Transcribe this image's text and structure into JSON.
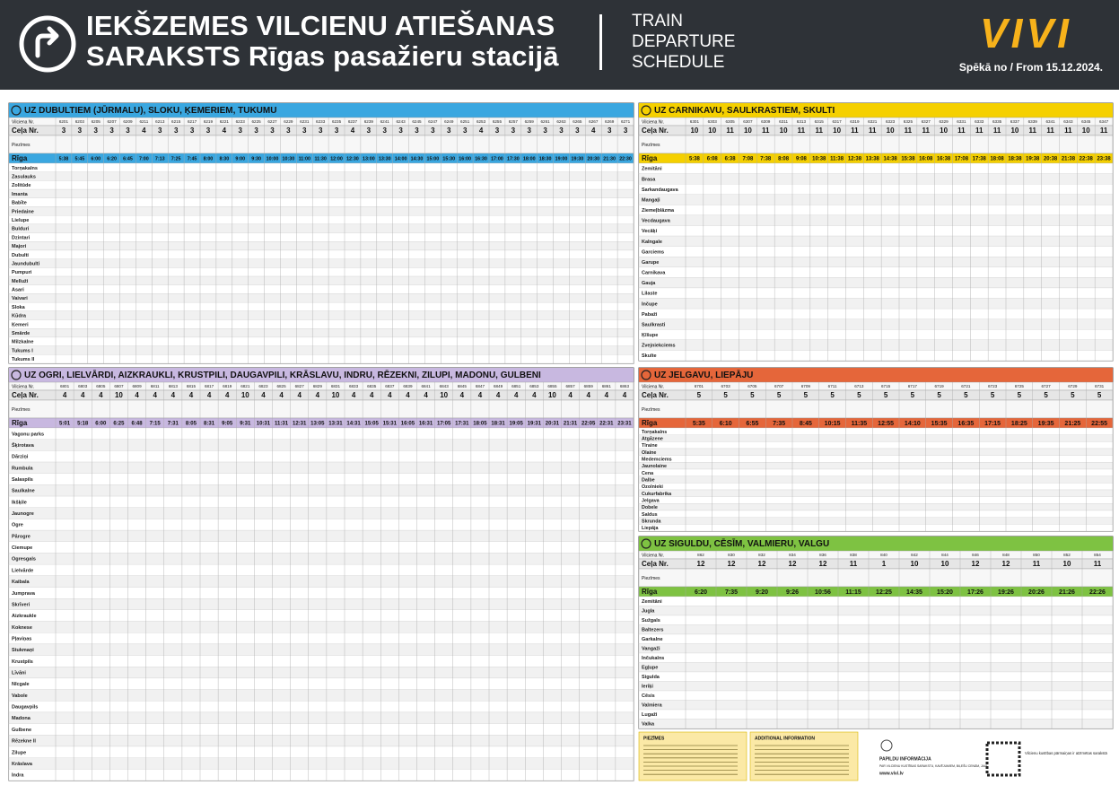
{
  "header": {
    "title_lv": [
      "IEKŠZEMES VILCIENU ATIEŠANAS",
      "SARAKSTS Rīgas pasažieru stacijā"
    ],
    "title_en": [
      "TRAIN",
      "DEPARTURE",
      "SCHEDULE"
    ],
    "logo": "VIVI",
    "valid": "Spēkā no / From 15.12.2024."
  },
  "row_labels": [
    "Vilciena Nr.",
    "Ceļa Nr.",
    "Piezīmes",
    "Rīga"
  ],
  "sections": [
    {
      "title": "UZ DUBULTIEM (JŪRMALU), SLOKU, ĶEMERIEM, TUKUMU",
      "color": "#3aa7e0",
      "trains": [
        "6201",
        "6203",
        "6205",
        "6207",
        "6209",
        "6211",
        "6213",
        "6215",
        "6217",
        "6219",
        "6221",
        "6223",
        "6225",
        "6227",
        "6229",
        "6231",
        "6233",
        "6235",
        "6237",
        "6239",
        "6241",
        "6243",
        "6245",
        "6247",
        "6249",
        "6251",
        "6253",
        "6255",
        "6257",
        "6259",
        "6261",
        "6263",
        "6265",
        "6267",
        "6269",
        "6271"
      ],
      "platforms": [
        "3",
        "3",
        "3",
        "3",
        "3",
        "4",
        "3",
        "3",
        "3",
        "3",
        "4",
        "3",
        "3",
        "3",
        "3",
        "3",
        "3",
        "3",
        "4",
        "3",
        "3",
        "3",
        "3",
        "3",
        "3",
        "3",
        "4",
        "3",
        "3",
        "3",
        "3",
        "3",
        "3",
        "4",
        "3",
        "3"
      ],
      "departures": [
        "5:38",
        "5:45",
        "6:00",
        "6:20",
        "6:45",
        "7:00",
        "7:13",
        "7:25",
        "7:45",
        "8:00",
        "8:30",
        "9:00",
        "9:30",
        "10:00",
        "10:30",
        "11:00",
        "11:30",
        "12:00",
        "12:30",
        "13:00",
        "13:30",
        "14:00",
        "14:30",
        "15:00",
        "15:30",
        "16:00",
        "16:30",
        "17:00",
        "17:30",
        "18:00",
        "18:30",
        "19:00",
        "19:30",
        "20:30",
        "21:30",
        "22:30"
      ],
      "stations": [
        "Torņakalns",
        "Zasulauks",
        "Zolitūde",
        "Imanta",
        "Babīte",
        "Priedaine",
        "Lielupe",
        "Bulduri",
        "Dzintari",
        "Majori",
        "Dubulti",
        "Jaundubulti",
        "Pumpuri",
        "Melluži",
        "Asari",
        "Vaivari",
        "Sloka",
        "Kūdra",
        "Ķemeri",
        "Smārde",
        "Milzkalne",
        "Tukums I",
        "Tukums II"
      ]
    },
    {
      "title": "UZ CARNIKAVU, SAULKRASTIEM, SKULTI",
      "color": "#f5d000",
      "trains": [
        "6301",
        "6303",
        "6305",
        "6307",
        "6309",
        "6311",
        "6313",
        "6315",
        "6317",
        "6319",
        "6321",
        "6323",
        "6325",
        "6327",
        "6329",
        "6331",
        "6333",
        "6335",
        "6337",
        "6339",
        "6341",
        "6343",
        "6345",
        "6347"
      ],
      "platforms": [
        "10",
        "10",
        "11",
        "10",
        "11",
        "10",
        "11",
        "11",
        "10",
        "11",
        "11",
        "10",
        "11",
        "11",
        "10",
        "11",
        "11",
        "11",
        "10",
        "11",
        "11",
        "11",
        "10",
        "11"
      ],
      "departures": [
        "5:38",
        "6:08",
        "6:38",
        "7:08",
        "7:38",
        "8:08",
        "9:08",
        "10:38",
        "11:38",
        "12:38",
        "13:38",
        "14:38",
        "15:38",
        "16:08",
        "16:38",
        "17:08",
        "17:38",
        "18:08",
        "18:38",
        "19:38",
        "20:38",
        "21:38",
        "22:38",
        "23:38"
      ],
      "stations": [
        "Zemitāni",
        "Brasa",
        "Sarkandaugava",
        "Mangaļi",
        "Ziemeļblāzma",
        "Vecdaugava",
        "Vecāķi",
        "Kalngale",
        "Garciems",
        "Garupe",
        "Carnikava",
        "Gauja",
        "Lilaste",
        "Inčupe",
        "Pabaži",
        "Saulkrasti",
        "Ķīšupe",
        "Zvejniekciems",
        "Skulte"
      ]
    },
    {
      "title": "UZ OGRI, LIELVĀRDI, AIZKRAUKLI, KRUSTPILI, DAUGAVPILI, KRĀSLAVU, INDRU, RĒZEKNI, ZILUPI, MADONU, GULBENI",
      "color": "#c8b8e0",
      "trains": [
        "6801",
        "6803",
        "6805",
        "6807",
        "6809",
        "6811",
        "6813",
        "6815",
        "6817",
        "6819",
        "6821",
        "6823",
        "6825",
        "6827",
        "6829",
        "6831",
        "6833",
        "6835",
        "6837",
        "6839",
        "6841",
        "6843",
        "6845",
        "6847",
        "6849",
        "6851",
        "6853",
        "6855",
        "6857",
        "6859",
        "6861",
        "6863"
      ],
      "platforms": [
        "4",
        "4",
        "4",
        "10",
        "4",
        "4",
        "4",
        "4",
        "4",
        "4",
        "10",
        "4",
        "4",
        "4",
        "4",
        "10",
        "4",
        "4",
        "4",
        "4",
        "4",
        "10",
        "4",
        "4",
        "4",
        "4",
        "4",
        "10",
        "4",
        "4",
        "4",
        "4"
      ],
      "departures": [
        "5:01",
        "5:18",
        "6:00",
        "6:25",
        "6:48",
        "7:15",
        "7:31",
        "8:05",
        "8:31",
        "9:05",
        "9:31",
        "10:31",
        "11:31",
        "12:31",
        "13:05",
        "13:31",
        "14:31",
        "15:05",
        "15:31",
        "16:05",
        "16:31",
        "17:05",
        "17:31",
        "18:05",
        "18:31",
        "19:05",
        "19:31",
        "20:31",
        "21:31",
        "22:05",
        "22:31",
        "23:31"
      ],
      "stations": [
        "Vagonu parks",
        "Šķirotava",
        "Dārziņi",
        "Rumbula",
        "Salaspils",
        "Saulkalne",
        "Ikšķile",
        "Jaunogre",
        "Ogre",
        "Pārogre",
        "Ciemupe",
        "Ogresgals",
        "Lielvārde",
        "Kaibala",
        "Jumprava",
        "Skrīveri",
        "Aizkraukle",
        "Koknese",
        "Pļaviņas",
        "Stukmaņi",
        "Krustpils",
        "Līvāni",
        "Nīcgale",
        "Vabole",
        "Daugavpils",
        "Madona",
        "Gulbene",
        "Rēzekne II",
        "Zilupe",
        "Krāslava",
        "Indra"
      ]
    },
    {
      "title": "UZ JELGAVU, LIEPĀJU",
      "color": "#e5663a",
      "trains": [
        "6701",
        "6703",
        "6705",
        "6707",
        "6709",
        "6711",
        "6713",
        "6715",
        "6717",
        "6719",
        "6721",
        "6723",
        "6725",
        "6727",
        "6729",
        "6731"
      ],
      "platforms": [
        "5",
        "5",
        "5",
        "5",
        "5",
        "5",
        "5",
        "5",
        "5",
        "5",
        "5",
        "5",
        "5",
        "5",
        "5",
        "5"
      ],
      "departures": [
        "5:35",
        "6:10",
        "6:55",
        "7:35",
        "8:45",
        "10:15",
        "11:35",
        "12:55",
        "14:10",
        "15:35",
        "16:35",
        "17:15",
        "18:25",
        "19:35",
        "21:25",
        "22:55"
      ],
      "stations": [
        "Torņakalns",
        "Atgāzene",
        "Tīraine",
        "Olaine",
        "Medemciems",
        "Jaunolaine",
        "Cena",
        "Dalbe",
        "Ozolnieki",
        "Cukurfabrika",
        "Jelgava",
        "Dobele",
        "Saldus",
        "Skrunda",
        "Liepāja"
      ]
    },
    {
      "title": "UZ SIGULDU, CĒSĪM, VALMIERU, VALGU",
      "color": "#7ec242",
      "trains": [
        "862",
        "830",
        "832",
        "834",
        "836",
        "838",
        "840",
        "842",
        "844",
        "846",
        "848",
        "850",
        "852",
        "854"
      ],
      "platforms": [
        "12",
        "12",
        "12",
        "12",
        "12",
        "11",
        "1",
        "10",
        "10",
        "12",
        "12",
        "11",
        "10",
        "11"
      ],
      "departures": [
        "6:20",
        "7:35",
        "9:20",
        "9:26",
        "10:56",
        "11:15",
        "12:25",
        "14:35",
        "15:20",
        "17:26",
        "19:26",
        "20:26",
        "21:26",
        "22:26"
      ],
      "stations": [
        "Zemitāni",
        "Jugla",
        "Sužgals",
        "Baltezers",
        "Garkalne",
        "Vangaži",
        "Inčukalns",
        "Egļupe",
        "Sigulda",
        "Ieriķi",
        "Cēsis",
        "Valmiera",
        "Lugaži",
        "Valka"
      ]
    }
  ],
  "footer": {
    "legend_titles": [
      "PIEZĪMES",
      "ADDITIONAL INFORMATION"
    ],
    "info_title": "PAPILDU INFORMĀCIJA",
    "info_text": "PAR VILCIENU KUSTĪBAS SARAKSTU, KAVĒJUMIEM, BIĻEŠU CENĀM, JAUNUMIEM:",
    "site": "www.vivi.lv",
    "note": "Vilcienu kustības pārmaiņas ir atzīmētas sarakstā"
  }
}
